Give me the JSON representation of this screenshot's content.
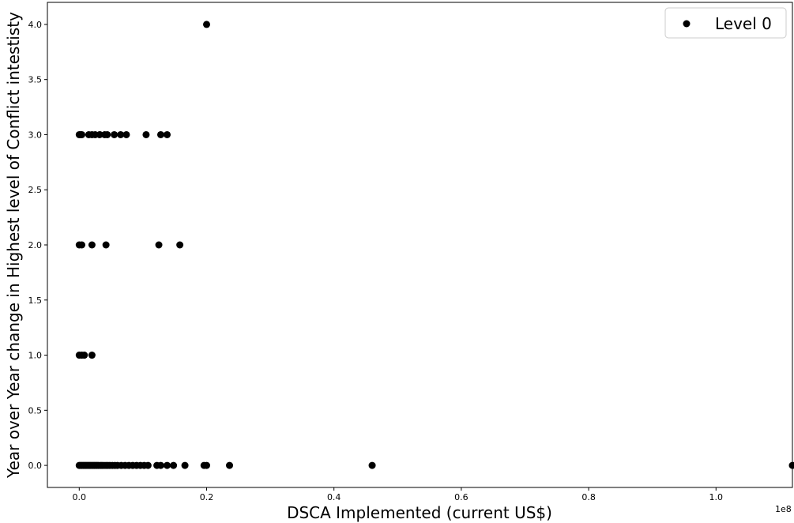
{
  "chart_data": {
    "type": "scatter",
    "xlabel": "DSCA Implemented  (current US$)",
    "ylabel": "Year over Year change in Highest level of Conflict intestisty",
    "x_offset_label": "1e8",
    "xlim": [
      -0.05,
      1.12
    ],
    "ylim": [
      -0.2,
      4.2
    ],
    "x_ticks": [
      0.0,
      0.2,
      0.4,
      0.6,
      0.8,
      1.0
    ],
    "x_tick_labels": [
      "0.0",
      "0.2",
      "0.4",
      "0.6",
      "0.8",
      "1.0"
    ],
    "y_ticks": [
      0.0,
      0.5,
      1.0,
      1.5,
      2.0,
      2.5,
      3.0,
      3.5,
      4.0
    ],
    "y_tick_labels": [
      "0.0",
      "0.5",
      "1.0",
      "1.5",
      "2.0",
      "2.5",
      "3.0",
      "3.5",
      "4.0"
    ],
    "legend": {
      "label": "Level 0",
      "position": "upper right"
    },
    "grid": false,
    "marker_color": "#000000",
    "series": [
      {
        "name": "Level 0",
        "points": [
          [
            0.2,
            4.0
          ],
          [
            0.0,
            3.0
          ],
          [
            0.002,
            3.0
          ],
          [
            0.004,
            3.0
          ],
          [
            0.015,
            3.0
          ],
          [
            0.02,
            3.0
          ],
          [
            0.025,
            3.0
          ],
          [
            0.032,
            3.0
          ],
          [
            0.04,
            3.0
          ],
          [
            0.044,
            3.0
          ],
          [
            0.055,
            3.0
          ],
          [
            0.065,
            3.0
          ],
          [
            0.074,
            3.0
          ],
          [
            0.105,
            3.0
          ],
          [
            0.128,
            3.0
          ],
          [
            0.138,
            3.0
          ],
          [
            0.0,
            2.0
          ],
          [
            0.004,
            2.0
          ],
          [
            0.02,
            2.0
          ],
          [
            0.042,
            2.0
          ],
          [
            0.125,
            2.0
          ],
          [
            0.158,
            2.0
          ],
          [
            0.0,
            1.0
          ],
          [
            0.004,
            1.0
          ],
          [
            0.008,
            1.0
          ],
          [
            0.02,
            1.0
          ],
          [
            0.0,
            0.0
          ],
          [
            0.002,
            0.0
          ],
          [
            0.004,
            0.0
          ],
          [
            0.006,
            0.0
          ],
          [
            0.008,
            0.0
          ],
          [
            0.01,
            0.0
          ],
          [
            0.012,
            0.0
          ],
          [
            0.014,
            0.0
          ],
          [
            0.016,
            0.0
          ],
          [
            0.018,
            0.0
          ],
          [
            0.02,
            0.0
          ],
          [
            0.022,
            0.0
          ],
          [
            0.024,
            0.0
          ],
          [
            0.026,
            0.0
          ],
          [
            0.028,
            0.0
          ],
          [
            0.03,
            0.0
          ],
          [
            0.033,
            0.0
          ],
          [
            0.036,
            0.0
          ],
          [
            0.039,
            0.0
          ],
          [
            0.042,
            0.0
          ],
          [
            0.045,
            0.0
          ],
          [
            0.048,
            0.0
          ],
          [
            0.052,
            0.0
          ],
          [
            0.056,
            0.0
          ],
          [
            0.06,
            0.0
          ],
          [
            0.066,
            0.0
          ],
          [
            0.072,
            0.0
          ],
          [
            0.078,
            0.0
          ],
          [
            0.084,
            0.0
          ],
          [
            0.09,
            0.0
          ],
          [
            0.096,
            0.0
          ],
          [
            0.102,
            0.0
          ],
          [
            0.108,
            0.0
          ],
          [
            0.122,
            0.0
          ],
          [
            0.128,
            0.0
          ],
          [
            0.138,
            0.0
          ],
          [
            0.148,
            0.0
          ],
          [
            0.166,
            0.0
          ],
          [
            0.196,
            0.0
          ],
          [
            0.2,
            0.0
          ],
          [
            0.236,
            0.0
          ],
          [
            0.46,
            0.0
          ],
          [
            1.12,
            0.0
          ]
        ]
      }
    ]
  }
}
